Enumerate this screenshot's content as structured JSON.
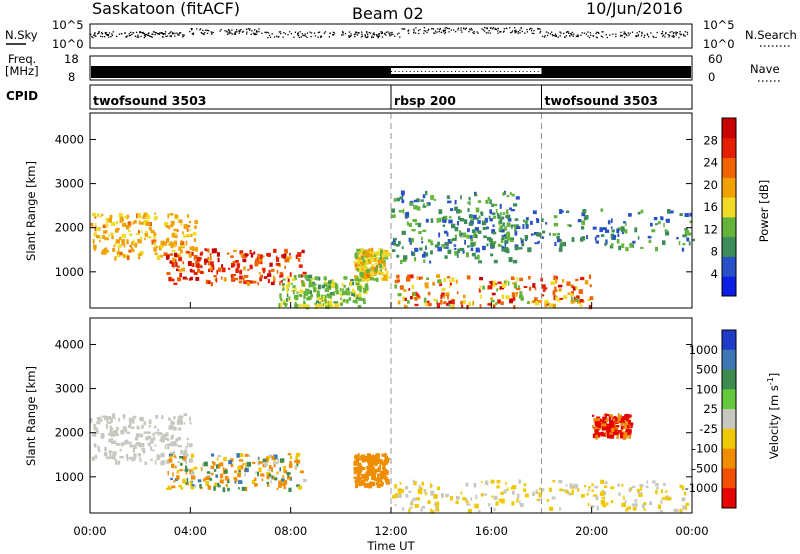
{
  "header": {
    "station": "Saskatoon (fitACF)",
    "beam": "Beam 02",
    "date": "10/Jun/2016"
  },
  "top_panel_labels": {
    "nsky": "N.Sky",
    "nsky_top": "10^5",
    "nsky_bottom": "10^0",
    "freq": "Freq.",
    "freq_unit": "[MHz]",
    "freq_top": "18",
    "freq_bottom": "8",
    "cpid": "CPID",
    "nsearch": "N.Search",
    "nsearch_top": "10^5",
    "nsearch_bottom": "10^0",
    "nave": "Nave",
    "nave_top": "60",
    "nave_bottom": "0"
  },
  "cpid_segments": [
    {
      "label": "twofsound 3503",
      "start_hour": 0
    },
    {
      "label": "rbsp 200",
      "start_hour": 12
    },
    {
      "label": "twofsound 3503",
      "start_hour": 18
    }
  ],
  "colors": {
    "power_scale": [
      "#0a1ee6",
      "#2850c8",
      "#3c8c5a",
      "#64b43c",
      "#f0dc28",
      "#f0a000",
      "#f06400",
      "#e61e00",
      "#c80000"
    ],
    "velocity_scale": [
      "#1e3cc8",
      "#3c78b4",
      "#3c8c50",
      "#64c83c",
      "#c8c8c0",
      "#f0c800",
      "#f08c00",
      "#f05000",
      "#e60000"
    ]
  },
  "chart_data": [
    {
      "type": "heatmap",
      "title": "Power",
      "xlabel": "",
      "ylabel": "Slant Range [km]",
      "x_ticks": [
        "00:00",
        "04:00",
        "08:00",
        "12:00",
        "16:00",
        "20:00",
        "00:00"
      ],
      "x_tick_hours": [
        0,
        4,
        8,
        12,
        16,
        20,
        24
      ],
      "xlim": [
        0,
        24
      ],
      "ylim": [
        180,
        4600
      ],
      "y_ticks": [
        1000,
        2000,
        3000,
        4000
      ],
      "colorbar": {
        "label": "Power [dB]",
        "min": 0,
        "max": 32,
        "ticks": [
          4,
          8,
          12,
          16,
          20,
          24,
          28
        ]
      },
      "bands": [
        {
          "t0": 0,
          "t1": 4.2,
          "r0": 1300,
          "r1": 2300,
          "p0": 16,
          "p1": 22
        },
        {
          "t0": 3,
          "t1": 8.5,
          "r0": 700,
          "r1": 1500,
          "p0": 20,
          "p1": 30
        },
        {
          "t0": 7.5,
          "t1": 11,
          "r0": 200,
          "r1": 900,
          "p0": 10,
          "p1": 16
        },
        {
          "t0": 10.5,
          "t1": 11.8,
          "r0": 800,
          "r1": 1500,
          "p0": 12,
          "p1": 22
        },
        {
          "t0": 12,
          "t1": 20,
          "r0": 200,
          "r1": 900,
          "p0": 12,
          "p1": 30
        },
        {
          "t0": 12,
          "t1": 17,
          "r0": 1200,
          "r1": 2800,
          "p0": 4,
          "p1": 14
        },
        {
          "t0": 14,
          "t1": 24,
          "r0": 1500,
          "r1": 2400,
          "p0": 4,
          "p1": 12
        }
      ]
    },
    {
      "type": "heatmap",
      "title": "Velocity",
      "xlabel": "Time UT",
      "ylabel": "Slant Range [km]",
      "x_ticks": [
        "00:00",
        "04:00",
        "08:00",
        "12:00",
        "16:00",
        "20:00",
        "00:00"
      ],
      "x_tick_hours": [
        0,
        4,
        8,
        12,
        16,
        20,
        24
      ],
      "xlim": [
        0,
        24
      ],
      "ylim": [
        180,
        4600
      ],
      "y_ticks": [
        1000,
        2000,
        3000,
        4000
      ],
      "colorbar": {
        "label": "Velocity [m s-1]",
        "label_main": "Velocity  [m s",
        "label_sup": "-1",
        "label_end": "]",
        "levels": [
          "1000",
          "500",
          "100",
          "25",
          "-25",
          "-100",
          "-500",
          "-1000"
        ]
      },
      "bands": [
        {
          "t0": 0,
          "t1": 4,
          "r0": 1300,
          "r1": 2400,
          "v0": -25,
          "v1": 25
        },
        {
          "t0": 3,
          "t1": 8.5,
          "r0": 700,
          "r1": 1500,
          "v0": -300,
          "v1": 150
        },
        {
          "t0": 10.5,
          "t1": 11.8,
          "r0": 800,
          "r1": 1500,
          "v0": -300,
          "v1": -100
        },
        {
          "t0": 12,
          "t1": 24,
          "r0": 200,
          "r1": 900,
          "v0": -100,
          "v1": 25
        },
        {
          "t0": 20,
          "t1": 21.5,
          "r0": 1900,
          "r1": 2400,
          "v0": -900,
          "v1": -300
        }
      ]
    }
  ]
}
